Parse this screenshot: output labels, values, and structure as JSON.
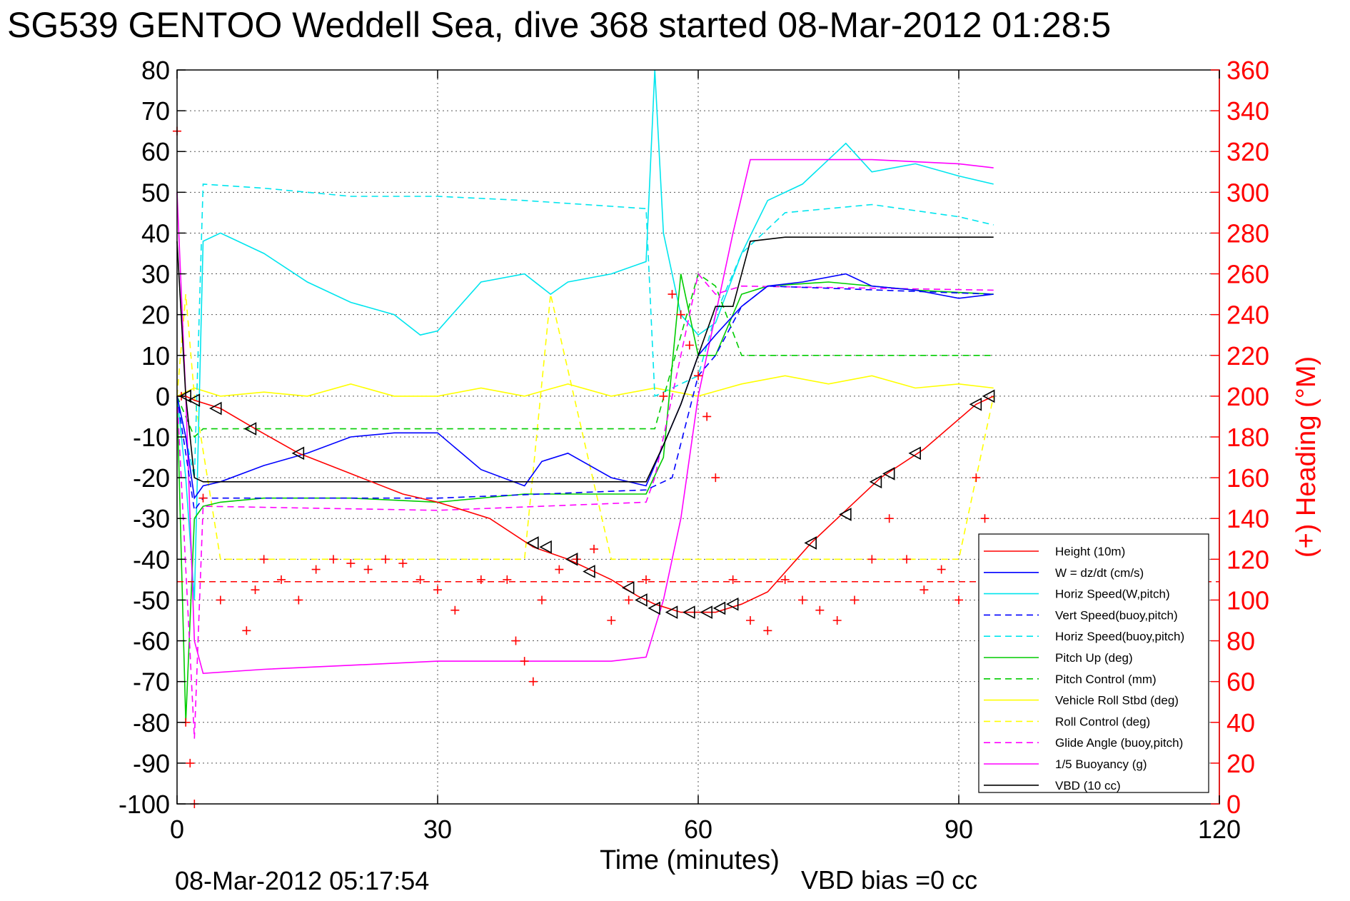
{
  "chart_data": {
    "type": "line",
    "title": "SG539 GENTOO Weddell Sea, dive 368 started 08-Mar-2012 01:28:5",
    "xlabel": "Time (minutes)",
    "ylabel_right": "(+) Heading (°M)",
    "footer_left": "08-Mar-2012 05:17:54",
    "footer_right": "VBD bias =0 cc",
    "xlim": [
      0,
      120
    ],
    "ylim": [
      -100,
      80
    ],
    "ylim_right": [
      0,
      360
    ],
    "xticks": [
      0,
      30,
      60,
      90,
      120
    ],
    "xtick_labels": [
      "0",
      "30",
      "60",
      "90",
      "120"
    ],
    "yticks": [
      80,
      70,
      60,
      50,
      40,
      30,
      20,
      10,
      0,
      -10,
      -20,
      -30,
      -40,
      -50,
      -60,
      -70,
      -80,
      -90,
      -100
    ],
    "ytick_labels": [
      "80",
      "70",
      "60",
      "50",
      "40",
      "30",
      "20",
      "10",
      "0",
      "-10",
      "-20",
      "-30",
      "-40",
      "-50",
      "-60",
      "-70",
      "-80",
      "-90",
      "-100"
    ],
    "yticks_right": [
      360,
      340,
      320,
      300,
      280,
      260,
      240,
      220,
      200,
      180,
      160,
      140,
      120,
      100,
      80,
      60,
      40,
      20,
      0
    ],
    "ytick_labels_right": [
      "360",
      "340",
      "320",
      "300",
      "280",
      "260",
      "240",
      "220",
      "200",
      "180",
      "160",
      "140",
      "120",
      "100",
      "80",
      "60",
      "40",
      "20",
      "0"
    ],
    "grid": true,
    "legend_position": "bottom-right",
    "series": [
      {
        "name": "Height (10m)",
        "color": "#ff0000",
        "style": "solid",
        "x": [
          0,
          1,
          2,
          5,
          9,
          14,
          20,
          26,
          30,
          36,
          41,
          45,
          50,
          53,
          55,
          58,
          62,
          65,
          68,
          73,
          77,
          81,
          86,
          92,
          94
        ],
        "y": [
          0,
          0,
          -1,
          -3,
          -8,
          -14,
          -19,
          -24,
          -26,
          -30,
          -37,
          -40,
          -45,
          -49,
          -51,
          -53,
          -53,
          -51,
          -48,
          -36,
          -28,
          -20,
          -13,
          -2,
          0
        ]
      },
      {
        "name": "W = dz/dt (cm/s)",
        "color": "#0000ff",
        "style": "solid",
        "x": [
          0,
          1,
          2,
          3,
          5,
          10,
          15,
          20,
          25,
          30,
          35,
          40,
          42,
          45,
          50,
          54,
          56,
          58,
          60,
          62,
          65,
          68,
          72,
          77,
          80,
          85,
          90,
          94
        ],
        "y": [
          0,
          -10,
          -25,
          -22,
          -21,
          -17,
          -14,
          -10,
          -9,
          -9,
          -18,
          -22,
          -16,
          -14,
          -20,
          -22,
          -12,
          -2,
          10,
          15,
          22,
          27,
          28,
          30,
          27,
          26,
          24,
          25
        ]
      },
      {
        "name": "Horiz Speed(W,pitch)",
        "color": "#00e5ee",
        "style": "solid",
        "x": [
          0,
          1,
          2,
          3,
          5,
          10,
          15,
          20,
          25,
          28,
          30,
          35,
          40,
          43,
          45,
          50,
          54,
          55,
          56,
          58,
          60,
          62,
          65,
          68,
          72,
          77,
          80,
          85,
          90,
          94
        ],
        "y": [
          0,
          -20,
          -50,
          38,
          40,
          35,
          28,
          23,
          20,
          15,
          16,
          28,
          30,
          25,
          28,
          30,
          33,
          80,
          40,
          20,
          15,
          18,
          35,
          48,
          52,
          62,
          55,
          57,
          54,
          52
        ]
      },
      {
        "name": "Vert Speed(buoy,pitch)",
        "color": "#0000ff",
        "style": "dashed",
        "x": [
          0,
          2,
          3,
          30,
          54,
          57,
          60,
          62,
          65,
          68,
          94
        ],
        "y": [
          0,
          -28,
          -25,
          -25,
          -23,
          -20,
          5,
          10,
          22,
          27,
          25
        ]
      },
      {
        "name": "Horiz Speed(buoy,pitch)",
        "color": "#00e5ee",
        "style": "dashed",
        "x": [
          0,
          2,
          3,
          10,
          20,
          30,
          40,
          54,
          55,
          60,
          62,
          65,
          70,
          80,
          90,
          94
        ],
        "y": [
          0,
          -20,
          52,
          51,
          49,
          49,
          48,
          46,
          0,
          5,
          20,
          35,
          45,
          47,
          44,
          42
        ]
      },
      {
        "name": "Pitch Up (deg)",
        "color": "#00cc00",
        "style": "solid",
        "x": [
          0,
          1,
          2,
          3,
          5,
          10,
          20,
          30,
          40,
          50,
          54,
          56,
          58,
          60,
          62,
          65,
          68,
          75,
          85,
          94
        ],
        "y": [
          0,
          -80,
          -30,
          -27,
          -26,
          -25,
          -25,
          -26,
          -24,
          -24,
          -24,
          -15,
          30,
          10,
          10,
          25,
          27,
          28,
          26,
          25
        ]
      },
      {
        "name": "Pitch Control (mm)",
        "color": "#00cc00",
        "style": "dashed",
        "x": [
          0,
          2,
          3,
          30,
          54,
          55,
          60,
          62,
          65,
          94
        ],
        "y": [
          0,
          -10,
          -8,
          -8,
          -8,
          -8,
          30,
          27,
          10,
          10
        ]
      },
      {
        "name": "Vehicle Roll Stbd (deg)",
        "color": "#ffff00",
        "style": "solid",
        "x": [
          0,
          2,
          5,
          10,
          15,
          20,
          25,
          30,
          35,
          40,
          45,
          50,
          55,
          60,
          65,
          70,
          75,
          80,
          85,
          90,
          94
        ],
        "y": [
          0,
          2,
          0,
          1,
          0,
          3,
          0,
          0,
          2,
          0,
          3,
          0,
          2,
          0,
          3,
          5,
          3,
          5,
          2,
          3,
          2
        ]
      },
      {
        "name": "Roll Control (deg)",
        "color": "#ffff00",
        "style": "dashed",
        "x": [
          0,
          1,
          2,
          5,
          14,
          30,
          40,
          43,
          50,
          55,
          60,
          65,
          80,
          90,
          94
        ],
        "y": [
          0,
          25,
          0,
          -40,
          -40,
          -40,
          -40,
          25,
          -40,
          -40,
          -40,
          -40,
          -40,
          -40,
          0
        ]
      },
      {
        "name": "Glide Angle (buoy,pitch)",
        "color": "#ff00ff",
        "style": "dashed",
        "x": [
          0,
          2,
          3,
          30,
          54,
          55,
          60,
          62,
          65,
          94
        ],
        "y": [
          0,
          -84,
          -27,
          -28,
          -26,
          -20,
          30,
          25,
          27,
          26
        ]
      },
      {
        "name": "1/5 Buoyancy (g)",
        "color": "#ff00ff",
        "style": "solid",
        "x": [
          0,
          1,
          2,
          3,
          10,
          20,
          30,
          40,
          50,
          54,
          56,
          58,
          60,
          62,
          64,
          66,
          70,
          80,
          90,
          94
        ],
        "y": [
          50,
          0,
          -60,
          -68,
          -67,
          -66,
          -65,
          -65,
          -65,
          -64,
          -50,
          -30,
          0,
          20,
          40,
          58,
          58,
          58,
          57,
          56
        ]
      },
      {
        "name": "VBD (10 cc)",
        "color": "#000000",
        "style": "solid",
        "x": [
          0,
          1,
          2,
          3,
          5,
          10,
          20,
          30,
          40,
          54,
          56,
          58,
          60,
          62,
          64,
          66,
          70,
          80,
          90,
          94
        ],
        "y": [
          38,
          0,
          -20,
          -21,
          -21,
          -21,
          -21,
          -21,
          -21,
          -21,
          -12,
          -2,
          10,
          22,
          22,
          38,
          39,
          39,
          39,
          39
        ]
      }
    ],
    "heading_series": {
      "name": "(+) Heading",
      "axis": "right",
      "color": "#ff0000",
      "marker": "+",
      "x": [
        0,
        0.5,
        1,
        1.5,
        2,
        3,
        5,
        8,
        9,
        10,
        12,
        14,
        16,
        18,
        20,
        22,
        24,
        26,
        28,
        30,
        32,
        35,
        38,
        39,
        40,
        41,
        42,
        44,
        46,
        48,
        50,
        52,
        54,
        56,
        57,
        58,
        59,
        60,
        61,
        62,
        64,
        66,
        68,
        70,
        72,
        74,
        76,
        78,
        80,
        82,
        84,
        86,
        88,
        90,
        92,
        93
      ],
      "y": [
        330,
        200,
        40,
        20,
        0,
        150,
        100,
        85,
        105,
        120,
        110,
        100,
        115,
        120,
        118,
        115,
        120,
        118,
        110,
        105,
        95,
        110,
        110,
        80,
        70,
        60,
        100,
        115,
        120,
        125,
        90,
        100,
        110,
        200,
        250,
        240,
        225,
        210,
        190,
        160,
        110,
        90,
        85,
        110,
        100,
        95,
        90,
        100,
        120,
        140,
        120,
        105,
        115,
        100,
        160,
        140
      ]
    },
    "heading_reference": {
      "y": 109,
      "color": "#ff0000",
      "style": "dashed"
    },
    "triangle_markers": {
      "color": "#000000",
      "x": [
        1,
        2,
        4.5,
        8.5,
        14,
        41,
        42.5,
        45.5,
        47.5,
        52,
        53.5,
        55,
        57,
        59,
        61,
        62.5,
        64,
        73,
        77,
        80.5,
        82,
        85,
        92,
        93.5
      ],
      "y": [
        0,
        -1,
        -3,
        -8,
        -14,
        -36,
        -37,
        -40,
        -43,
        -47,
        -50,
        -52,
        -53,
        -53,
        -53,
        -52,
        -51,
        -36,
        -29,
        -21,
        -19,
        -14,
        -2,
        0
      ]
    }
  }
}
